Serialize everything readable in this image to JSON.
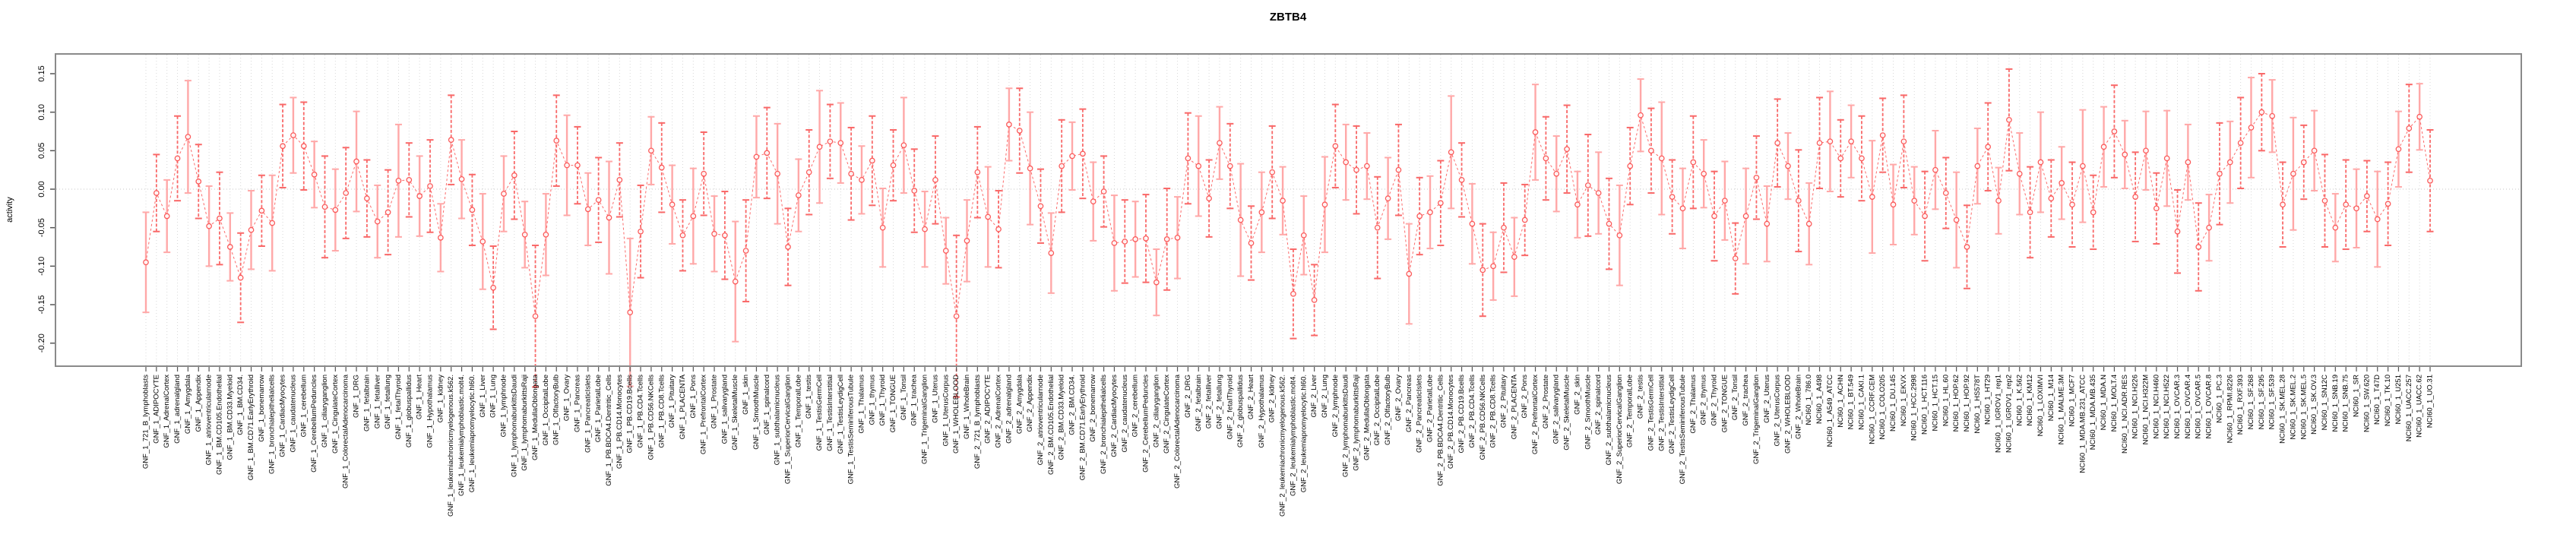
{
  "title": "ZBTB4",
  "chart_data": {
    "type": "line",
    "title": "ZBTB4",
    "ylabel": "activity",
    "xlabel": "",
    "ylim": [
      -0.225,
      0.175
    ],
    "yticks": [
      -0.2,
      -0.15,
      -0.1,
      -0.05,
      0.0,
      0.05,
      0.1,
      0.15
    ],
    "ytick_labels": [
      "-0.20",
      "-0.15",
      "-0.10",
      "-0.05",
      "0.00",
      "0.05",
      "0.10",
      "0.15"
    ],
    "zero_line": true,
    "grid": "vertical-dotted",
    "legend": "none",
    "marker": "open-circle",
    "line_style": "dashed",
    "point_color": "#fb5a5a",
    "line_color": "#fb6b6b",
    "errorbar_colors": [
      "#ffa8a8",
      "#f96868"
    ],
    "grid_color": "#d8d8d8",
    "frame_color": "#8a8a8a",
    "categories": [
      "GNF_1_721_B_lymphoblasts",
      "GNF_1_ADIPOCYTE",
      "GNF_1_AdrenalCortex",
      "GNF_1_adrenalgland",
      "GNF_1_Amygdala",
      "GNF_1_Appendix",
      "GNF_1_atrioventricularnode",
      "GNF_1_BM.CD105.Endothelial",
      "GNF_1_BM.CD33.Myeloid",
      "GNF_1_BM.CD34.",
      "GNF_1_BM.CD71.EarlyErythroid",
      "GNF_1_bonemarrow",
      "GNF_1_bronchialepithelialcells",
      "GNF_1_CardiacMyocytes",
      "GNF_1_caudatenucleus",
      "GNF_1_cerebellum",
      "GNF_1_CerebellumPeduncles",
      "GNF_1_ciliaryganglion",
      "GNF_1_CingulateCortex",
      "GNF_1_ColorectalAdenocarcinoma",
      "GNF_1_DRG",
      "GNF_1_fetalbrain",
      "GNF_1_fetalliver",
      "GNF_1_fetallung",
      "GNF_1_fetalThyroid",
      "GNF_1_globuspallidus",
      "GNF_1_Heart",
      "GNF_1_Hypothalamus",
      "GNF_1_kidney",
      "GNF_1_leukemiachronicmyelogenous.k562.",
      "GNF_1_leukemialymphoblastic.molt4.",
      "GNF_1_leukemiapromyelocytic.hl60.",
      "GNF_1_Liver",
      "GNF_1_Lung",
      "GNF_1_lymphnode",
      "GNF_1_lymphomaburkittsDaudi",
      "GNF_1_lymphomaburkittsRaji",
      "GNF_1_MedullaOblongata",
      "GNF_1_OccipitalLobe",
      "GNF_1_OlfactoryBulb",
      "GNF_1_Ovary",
      "GNF_1_Pancreas",
      "GNF_1_PancreaticIslets",
      "GNF_1_ParietalLobe",
      "GNF_1_PB.BDCA4.Dentritic_Cells",
      "GNF_1_PB.CD14.Monocytes",
      "GNF_1_PB.CD19.Bcells",
      "GNF_1_PB.CD4.Tcells",
      "GNF_1_PB.CD56.NKCells",
      "GNF_1_PB.CD8.Tcells",
      "GNF_1_Pituitary",
      "GNF_1_PLACENTA",
      "GNF_1_Pons",
      "GNF_1_PrefrontalCortex",
      "GNF_1_Prostate",
      "GNF_1_salivarygland",
      "GNF_1_SkeletalMuscle",
      "GNF_1_skin",
      "GNF_1_SmoothMuscle",
      "GNF_1_spinalcord",
      "GNF_1_subthalamicnucleus",
      "GNF_1_SuperiorCervicalGanglion",
      "GNF_1_TemporalLobe",
      "GNF_1_testis",
      "GNF_1_TestisGermCell",
      "GNF_1_TestisInterstitial",
      "GNF_1_TestisLeydigCell",
      "GNF_1_TestisSeminiferousTubule",
      "GNF_1_Thalamus",
      "GNF_1_thymus",
      "GNF_1_Thyroid",
      "GNF_1_TONGUE",
      "GNF_1_Tonsil",
      "GNF_1_trachea",
      "GNF_1_TrigeminalGanglion",
      "GNF_1_Uterus",
      "GNF_1_UterusCorpus",
      "GNF_1_WHOLEBLOOD",
      "GNF_1_WholeBrain",
      "GNF_2_721_B_lymphoblasts",
      "GNF_2_ADIPOCYTE",
      "GNF_2_AdrenalCortex",
      "GNF_2_adrenalgland",
      "GNF_2_Amygdala",
      "GNF_2_Appendix",
      "GNF_2_atrioventricularnode",
      "GNF_2_BM.CD105.Endothelial",
      "GNF_2_BM.CD33.Myeloid",
      "GNF_2_BM.CD34.",
      "GNF_2_BM.CD71.EarlyErythroid",
      "GNF_2_bonemarrow",
      "GNF_2_bronchialepithelialcells",
      "GNF_2_CardiacMyocytes",
      "GNF_2_caudatenucleus",
      "GNF_2_cerebellum",
      "GNF_2_CerebellumPeduncles",
      "GNF_2_ciliaryganglion",
      "GNF_2_CingulateCortex",
      "GNF_2_ColorectalAdenocarcinoma",
      "GNF_2_DRG",
      "GNF_2_fetalbrain",
      "GNF_2_fetalliver",
      "GNF_2_fetallung",
      "GNF_2_fetalThyroid",
      "GNF_2_globuspallidus",
      "GNF_2_Heart",
      "GNF_2_Hypothalamus",
      "GNF_2_kidney",
      "GNF_2_leukemiachronicmyelogenous.k562.",
      "GNF_2_leukemialymphoblastic.molt4.",
      "GNF_2_leukemiapromyelocytic.hl60.",
      "GNF_2_Liver",
      "GNF_2_Lung",
      "GNF_2_lymphnode",
      "GNF_2_lymphomaburkittsDaudi",
      "GNF_2_lymphomaburkittsRaji",
      "GNF_2_MedullaOblongata",
      "GNF_2_OccipitalLobe",
      "GNF_2_OlfactoryBulb",
      "GNF_2_Ovary",
      "GNF_2_Pancreas",
      "GNF_2_PancreaticIslets",
      "GNF_2_ParietalLobe",
      "GNF_2_PB.BDCA4.Dentritic_Cells",
      "GNF_2_PB.CD14.Monocytes",
      "GNF_2_PB.CD19.Bcells",
      "GNF_2_PB.CD4.Tcells",
      "GNF_2_PB.CD56.NKCells",
      "GNF_2_PB.CD8.Tcells",
      "GNF_2_Pituitary",
      "GNF_2_PLACENTA",
      "GNF_2_Pons",
      "GNF_2_PrefrontalCortex",
      "GNF_2_Prostate",
      "GNF_2_salivarygland",
      "GNF_2_SkeletalMuscle",
      "GNF_2_skin",
      "GNF_2_SmoothMuscle",
      "GNF_2_spinalcord",
      "GNF_2_subthalamicnucleus",
      "GNF_2_SuperiorCervicalGanglion",
      "GNF_2_TemporalLobe",
      "GNF_2_testis",
      "GNF_2_TestisGermCell",
      "GNF_2_TestisInterstitial",
      "GNF_2_TestisLeydigCell",
      "GNF_2_TestisSeminiferousTubule",
      "GNF_2_Thalamus",
      "GNF_2_thymus",
      "GNF_2_Thyroid",
      "GNF_2_TONGUE",
      "GNF_2_Tonsil",
      "GNF_2_trachea",
      "GNF_2_TrigeminalGanglion",
      "GNF_2_Uterus",
      "GNF_2_UterusCorpus",
      "GNF_2_WHOLEBLOOD",
      "GNF_2_WholeBrain",
      "NCI60_1_786.0",
      "NCI60_1_A498",
      "NCI60_1_A549_ATCC",
      "NCI60_1_ACHN",
      "NCI60_1_BT.549",
      "NCI60_1_CAKI.1",
      "NCI60_1_CCRF.CEM",
      "NCI60_1_COLO205",
      "NCI60_1_DU.145",
      "NCI60_1_EKVX",
      "NCI60_1_HCC.2998",
      "NCI60_1_HCT.116",
      "NCI60_1_HCT.15",
      "NCI60_1_HL.60",
      "NCI60_1_HOP.62",
      "NCI60_1_HOP.92",
      "NCI60_1_HS578T",
      "NCI60_1_HT29",
      "NCI60_1_IGROV1_rep1",
      "NCI60_1_IGROV1_rep2",
      "NCI60_1_K.562",
      "NCI60_1_KM12",
      "NCI60_1_LOXIMVI",
      "NCI60_1_M14",
      "NCI60_1_MALME.3M",
      "NCI60_1_MCF7",
      "NCI60_1_MDA.MB.231_ATCC",
      "NCI60_1_MDA.MB.435",
      "NCI60_1_MDA.N",
      "NCI60_1_MOLT.4",
      "NCI60_1_NCI.ADR.RES",
      "NCI60_1_NCI.H226",
      "NCI60_1_NCI.H322M",
      "NCI60_1_NCI.H460",
      "NCI60_1_NCI.H522",
      "NCI60_1_OVCAR.3",
      "NCI60_1_OVCAR.4",
      "NCI60_1_OVCAR.5",
      "NCI60_1_OVCAR.8",
      "NCI60_1_PC.3",
      "NCI60_1_RPMI.8226",
      "NCI60_1_RXF.393",
      "NCI60_1_SF.268",
      "NCI60_1_SF.295",
      "NCI60_1_SF.539",
      "NCI60_1_SK.MEL.28",
      "NCI60_1_SK.MEL.2",
      "NCI60_1_SK.MEL.5",
      "NCI60_1_SK.OV.3",
      "NCI60_1_SN12C",
      "NCI60_1_SNB.19",
      "NCI60_1_SNB.75",
      "NCI60_1_SR",
      "NCI60_1_SW.620",
      "NCI60_1_T47D",
      "NCI60_1_TK.10",
      "NCI60_1_U251",
      "NCI60_1_UACC.257",
      "NCI60_1_UACC.62",
      "NCI60_1_UO.31"
    ],
    "values": [
      -0.095,
      -0.005,
      -0.035,
      0.04,
      0.068,
      0.01,
      -0.048,
      -0.038,
      -0.075,
      -0.115,
      -0.053,
      -0.028,
      -0.044,
      0.056,
      0.07,
      0.056,
      0.019,
      -0.023,
      -0.027,
      -0.005,
      0.036,
      -0.012,
      -0.042,
      -0.03,
      0.011,
      0.012,
      -0.009,
      0.004,
      -0.063,
      0.064,
      0.013,
      -0.027,
      -0.068,
      -0.128,
      -0.006,
      0.018,
      -0.059,
      -0.165,
      -0.059,
      0.063,
      0.031,
      0.031,
      -0.026,
      -0.014,
      -0.037,
      0.012,
      -0.16,
      -0.055,
      0.05,
      0.028,
      -0.02,
      -0.06,
      -0.035,
      0.02,
      -0.058,
      -0.06,
      -0.12,
      -0.08,
      0.042,
      0.047,
      0.02,
      -0.075,
      -0.008,
      0.022,
      0.055,
      0.062,
      0.06,
      0.02,
      0.012,
      0.037,
      -0.05,
      0.031,
      0.057,
      -0.002,
      -0.052,
      0.012,
      -0.08,
      -0.165,
      -0.067,
      0.022,
      -0.036,
      -0.052,
      0.084,
      0.076,
      0.027,
      -0.022,
      -0.083,
      0.03,
      0.043,
      0.046,
      -0.016,
      -0.003,
      -0.07,
      -0.068,
      -0.065,
      -0.064,
      -0.121,
      -0.065,
      -0.063,
      0.04,
      0.03,
      -0.012,
      0.06,
      0.03,
      -0.04,
      -0.07,
      -0.03,
      0.022,
      -0.015,
      -0.136,
      -0.06,
      -0.144,
      -0.02,
      0.056,
      0.035,
      0.025,
      0.03,
      -0.05,
      -0.012,
      0.025,
      -0.11,
      -0.035,
      -0.03,
      -0.018,
      0.048,
      0.012,
      -0.045,
      -0.105,
      -0.1,
      -0.05,
      -0.088,
      -0.04,
      0.074,
      0.04,
      0.02,
      0.052,
      -0.02,
      0.005,
      -0.005,
      -0.045,
      -0.06,
      0.03,
      0.096,
      0.05,
      0.04,
      -0.01,
      -0.025,
      0.035,
      0.02,
      -0.035,
      -0.015,
      -0.09,
      -0.035,
      0.015,
      -0.045,
      0.06,
      0.03,
      -0.015,
      -0.045,
      0.06,
      0.062,
      0.04,
      0.062,
      0.04,
      -0.01,
      0.07,
      -0.02,
      0.062,
      -0.015,
      -0.035,
      0.025,
      -0.005,
      -0.04,
      -0.075,
      0.03,
      0.055,
      -0.015,
      0.09,
      0.02,
      -0.03,
      0.035,
      -0.012,
      0.008,
      -0.02,
      0.03,
      -0.03,
      0.055,
      0.075,
      0.045,
      -0.01,
      0.05,
      -0.025,
      0.04,
      -0.055,
      0.035,
      -0.075,
      -0.05,
      0.02,
      0.035,
      0.06,
      0.08,
      0.1,
      0.095,
      -0.02,
      0.02,
      0.035,
      0.05,
      -0.015,
      -0.05,
      -0.02,
      -0.025,
      -0.009,
      -0.039,
      -0.019,
      0.052,
      0.079,
      0.094,
      0.011
    ],
    "errors": [
      0.065,
      0.05,
      0.047,
      0.055,
      0.073,
      0.048,
      0.052,
      0.06,
      0.044,
      0.058,
      0.051,
      0.046,
      0.062,
      0.054,
      0.049,
      0.057,
      0.043,
      0.066,
      0.053,
      0.059,
      0.065,
      0.05,
      0.047,
      0.055,
      0.073,
      0.048,
      0.052,
      0.06,
      0.044,
      0.058,
      0.051,
      0.046,
      0.062,
      0.054,
      0.049,
      0.057,
      0.043,
      0.092,
      0.053,
      0.059,
      0.065,
      0.05,
      0.047,
      0.055,
      0.073,
      0.048,
      0.096,
      0.06,
      0.044,
      0.058,
      0.051,
      0.046,
      0.062,
      0.054,
      0.049,
      0.057,
      0.078,
      0.066,
      0.053,
      0.059,
      0.065,
      0.05,
      0.047,
      0.055,
      0.073,
      0.048,
      0.052,
      0.06,
      0.044,
      0.058,
      0.051,
      0.046,
      0.062,
      0.054,
      0.049,
      0.057,
      0.043,
      0.105,
      0.053,
      0.059,
      0.065,
      0.05,
      0.047,
      0.055,
      0.073,
      0.048,
      0.052,
      0.06,
      0.044,
      0.058,
      0.051,
      0.046,
      0.062,
      0.054,
      0.049,
      0.057,
      0.043,
      0.066,
      0.053,
      0.059,
      0.065,
      0.05,
      0.047,
      0.055,
      0.073,
      0.048,
      0.052,
      0.06,
      0.044,
      0.058,
      0.051,
      0.046,
      0.062,
      0.054,
      0.049,
      0.057,
      0.043,
      0.066,
      0.053,
      0.059,
      0.065,
      0.05,
      0.047,
      0.055,
      0.073,
      0.048,
      0.052,
      0.06,
      0.044,
      0.058,
      0.051,
      0.046,
      0.062,
      0.054,
      0.049,
      0.057,
      0.043,
      0.066,
      0.053,
      0.059,
      0.065,
      0.05,
      0.047,
      0.055,
      0.073,
      0.048,
      0.052,
      0.06,
      0.044,
      0.058,
      0.051,
      0.046,
      0.062,
      0.054,
      0.049,
      0.057,
      0.043,
      0.066,
      0.053,
      0.059,
      0.065,
      0.05,
      0.047,
      0.055,
      0.073,
      0.048,
      0.052,
      0.06,
      0.044,
      0.058,
      0.051,
      0.046,
      0.062,
      0.054,
      0.049,
      0.057,
      0.043,
      0.066,
      0.053,
      0.059,
      0.065,
      0.05,
      0.047,
      0.055,
      0.073,
      0.048,
      0.052,
      0.06,
      0.044,
      0.058,
      0.051,
      0.046,
      0.062,
      0.054,
      0.049,
      0.057,
      0.043,
      0.066,
      0.053,
      0.059,
      0.065,
      0.05,
      0.047,
      0.055,
      0.073,
      0.048,
      0.052,
      0.06,
      0.044,
      0.058,
      0.051,
      0.046,
      0.062,
      0.054,
      0.049,
      0.057,
      0.043,
      0.066
    ]
  }
}
